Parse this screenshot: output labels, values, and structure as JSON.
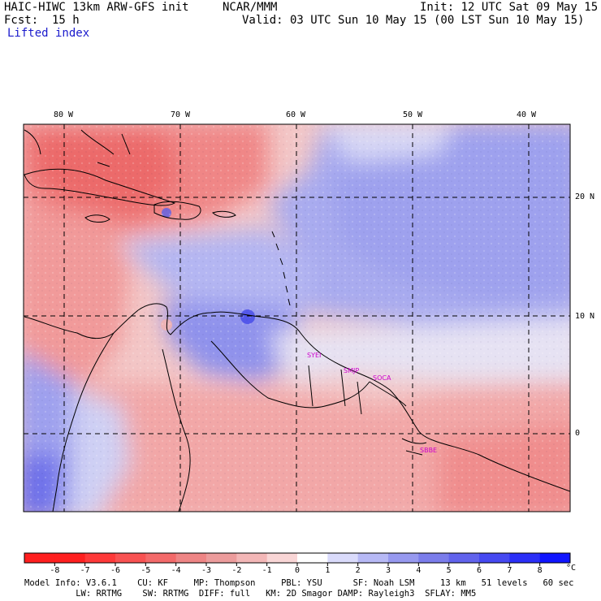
{
  "header": {
    "model_line": "HAIC-HIWC 13km ARW-GFS init",
    "org": "NCAR/MMM",
    "init": "Init: 12 UTC Sat 09 May 15",
    "fcst_label": "Fcst:",
    "fcst_value": "15 h",
    "valid": "Valid: 03 UTC Sun 10 May 15 (00 LST Sun 10 May 15)",
    "field": "Lifted index"
  },
  "map": {
    "lon_labels": [
      "80 W",
      "70 W",
      "60 W",
      "50 W",
      "40 W"
    ],
    "lat_labels": [
      "20 N",
      "10 N",
      "0"
    ],
    "stations": [
      "SYEI",
      "SMJP",
      "SOCA",
      "SBBE"
    ],
    "colors": {
      "land_border": "#000000",
      "grid": "#000000",
      "station": "#cc00cc"
    }
  },
  "colorbar": {
    "labels": [
      "-8",
      "-7",
      "-6",
      "-5",
      "-4",
      "-3",
      "-2",
      "-1",
      "0",
      "1",
      "2",
      "3",
      "4",
      "5",
      "6",
      "7",
      "8"
    ],
    "unit": "°C",
    "colors": [
      "#ff1f1f",
      "#fe3939",
      "#f85252",
      "#f36a6a",
      "#ee8585",
      "#ec9c9c",
      "#f3b7b7",
      "#f9d6d6",
      "#ffffff",
      "#dadbfb",
      "#b7b9f5",
      "#9799ef",
      "#7b7deb",
      "#6163ec",
      "#4649f1",
      "#2b2ff7",
      "#1015ff"
    ]
  },
  "footer": {
    "line1": "Model Info: V3.6.1    CU: KF     MP: Thompson     PBL: YSU      SF: Noah LSM     13 km   51 levels   60 sec",
    "line2": "          LW: RRTMG    SW: RRTMG  DIFF: full   KM: 2D Smagor DAMP: Rayleigh3  SFLAY: MM5"
  }
}
